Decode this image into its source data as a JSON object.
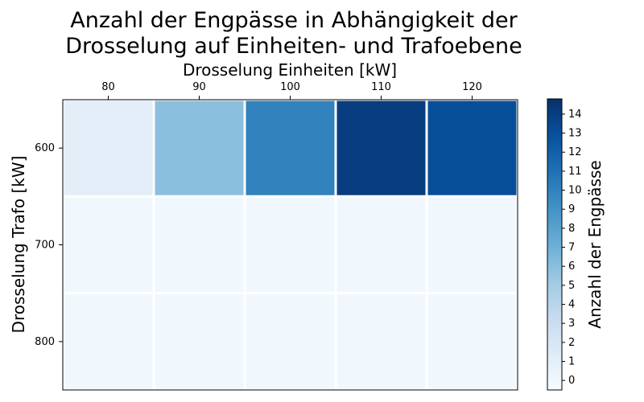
{
  "chart_data": {
    "type": "heatmap",
    "title_line1": "Anzahl der Engpässe in Abhängigkeit der",
    "title_line2": "Drosselung auf Einheiten- und Trafoebene",
    "xlabel": "Drosselung Einheiten [kW]",
    "ylabel": "Drosselung Trafo [kW]",
    "x_categories": [
      "80",
      "90",
      "100",
      "110",
      "120"
    ],
    "y_categories": [
      "600",
      "700",
      "800"
    ],
    "values": [
      [
        1,
        6,
        10,
        14,
        13
      ],
      [
        0,
        0,
        0,
        0,
        0
      ],
      [
        0,
        0,
        0,
        0,
        0
      ]
    ],
    "colorbar": {
      "label": "Anzahl der Engpässe",
      "min": -0.5,
      "max": 14.8,
      "ticks": [
        "0",
        "1",
        "2",
        "3",
        "4",
        "5",
        "6",
        "7",
        "8",
        "9",
        "10",
        "11",
        "12",
        "13",
        "14"
      ],
      "colormap": "Blues"
    },
    "x_axis_position": "top",
    "grid": false,
    "colors": {
      "cell_border": "#ffffff",
      "colormap_stops": [
        "#f7fbff",
        "#deebf7",
        "#c6dbef",
        "#9ecae1",
        "#6baed6",
        "#4292c6",
        "#2171b5",
        "#08519c",
        "#08306b"
      ]
    }
  }
}
